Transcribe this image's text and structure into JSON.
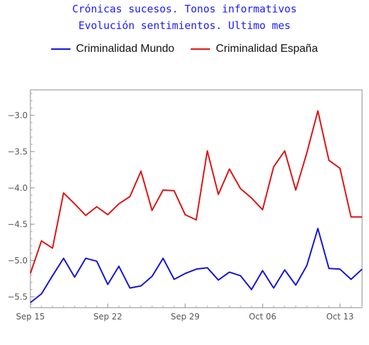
{
  "chart_data": {
    "type": "line",
    "title": "Crónicas sucesos. Tonos informativos",
    "subtitle": "Evolución sentimientos. Ultimo mes",
    "legend_position": "top",
    "grid": false,
    "x_start": "2019-09-15",
    "x_end": "2019-10-15",
    "x_tick_labels": [
      "Sep 15",
      "Sep 22",
      "Sep 29",
      "Oct 06",
      "Oct 13"
    ],
    "x_tick_dates": [
      "2019-09-15",
      "2019-09-22",
      "2019-09-29",
      "2019-10-06",
      "2019-10-13"
    ],
    "ylim": [
      -5.65,
      -2.65
    ],
    "y_ticks": [
      -3.0,
      -3.5,
      -4.0,
      -4.5,
      -5.0,
      -5.5
    ],
    "y_tick_labels": [
      "−3.0",
      "−3.5",
      "−4.0",
      "−4.5",
      "−5.0",
      "−5.5"
    ],
    "x": [
      "2019-09-15",
      "2019-09-16",
      "2019-09-17",
      "2019-09-18",
      "2019-09-19",
      "2019-09-20",
      "2019-09-21",
      "2019-09-22",
      "2019-09-23",
      "2019-09-24",
      "2019-09-25",
      "2019-09-26",
      "2019-09-27",
      "2019-09-28",
      "2019-09-29",
      "2019-09-30",
      "2019-10-01",
      "2019-10-02",
      "2019-10-03",
      "2019-10-04",
      "2019-10-05",
      "2019-10-06",
      "2019-10-07",
      "2019-10-08",
      "2019-10-09",
      "2019-10-10",
      "2019-10-11",
      "2019-10-12",
      "2019-10-13",
      "2019-10-14",
      "2019-10-15"
    ],
    "series": [
      {
        "name": "Criminalidad Mundo",
        "color": "#1111dd",
        "values": [
          -5.58,
          -5.46,
          -5.21,
          -4.97,
          -5.23,
          -4.97,
          -5.01,
          -5.33,
          -5.08,
          -5.38,
          -5.35,
          -5.22,
          -4.97,
          -5.26,
          -5.18,
          -5.12,
          -5.1,
          -5.27,
          -5.16,
          -5.21,
          -5.4,
          -5.14,
          -5.38,
          -5.13,
          -5.34,
          -5.07,
          -4.56,
          -5.11,
          -5.12,
          -5.26,
          -5.12
        ]
      },
      {
        "name": "Criminalidad España",
        "color": "#dd1111",
        "values": [
          -5.18,
          -4.73,
          -4.83,
          -4.07,
          -4.22,
          -4.38,
          -4.26,
          -4.37,
          -4.22,
          -4.12,
          -3.77,
          -4.31,
          -4.03,
          -4.04,
          -4.37,
          -4.44,
          -3.49,
          -4.09,
          -3.74,
          -4.01,
          -4.14,
          -4.3,
          -3.71,
          -3.49,
          -4.03,
          -3.52,
          -2.94,
          -3.62,
          -3.73,
          -4.4,
          -4.4
        ]
      }
    ]
  }
}
